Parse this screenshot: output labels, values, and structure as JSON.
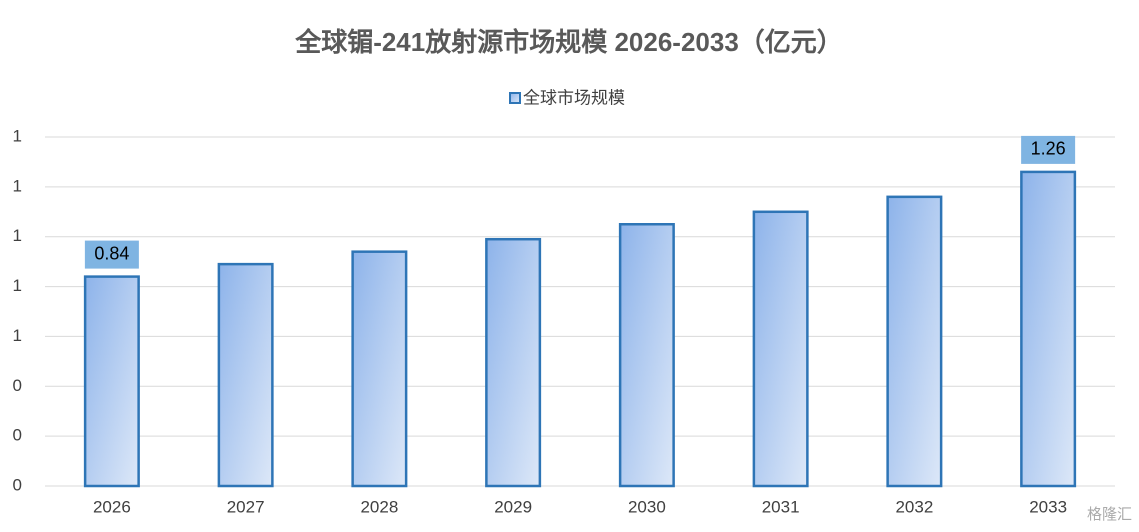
{
  "chart_data": {
    "type": "bar",
    "title": "全球镅-241放射源市场规模 2026-2033（亿元）",
    "categories": [
      "2026",
      "2027",
      "2028",
      "2029",
      "2030",
      "2031",
      "2032",
      "2033"
    ],
    "series": [
      {
        "name": "全球市场规模",
        "color": "#2e75b6",
        "values": [
          0.84,
          0.89,
          0.94,
          0.99,
          1.05,
          1.1,
          1.16,
          1.26
        ]
      }
    ],
    "value_labels": [
      "0.84",
      null,
      null,
      null,
      null,
      null,
      null,
      "1.26"
    ],
    "ylim": [
      0,
      1.4
    ],
    "yticks": [
      0,
      {
        "value": 0.2,
        "label": "0"
      },
      {
        "value": 0.4,
        "label": "0"
      },
      {
        "value": 0.6,
        "label": "1"
      },
      {
        "value": 0.8,
        "label": "1"
      },
      1,
      {
        "value": 1.2,
        "label": "1"
      },
      {
        "value": 1.4,
        "label": "1"
      }
    ],
    "grid": true,
    "legend": "top",
    "watermark": "格隆汇"
  }
}
